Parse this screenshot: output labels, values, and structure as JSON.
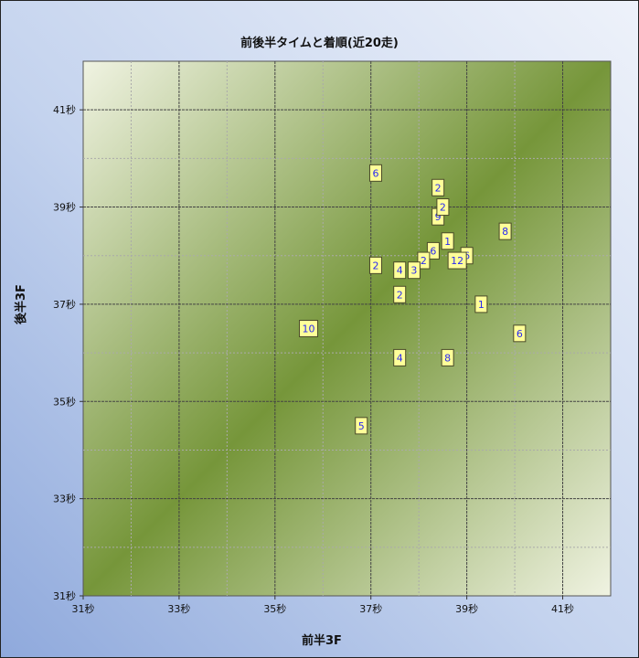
{
  "chart_data": {
    "type": "scatter",
    "title": "前後半タイムと着順(近20走)",
    "xlabel": "前半3F",
    "ylabel": "後半3F",
    "xlim": [
      31,
      42
    ],
    "ylim": [
      31,
      42
    ],
    "x_ticks": [
      "31秒",
      "33秒",
      "35秒",
      "37秒",
      "39秒",
      "41秒"
    ],
    "x_tick_values": [
      31,
      33,
      35,
      37,
      39,
      41
    ],
    "y_ticks": [
      "31秒",
      "33秒",
      "35秒",
      "37秒",
      "39秒",
      "41秒"
    ],
    "y_tick_values": [
      31,
      33,
      35,
      37,
      39,
      41
    ],
    "grid": true,
    "legend": "none",
    "marker_color": "#ffff99",
    "label_color": "#2a2af0",
    "points": [
      {
        "x": 37.1,
        "y": 39.7,
        "label": "6"
      },
      {
        "x": 38.4,
        "y": 39.4,
        "label": "2"
      },
      {
        "x": 38.4,
        "y": 38.8,
        "label": "9"
      },
      {
        "x": 38.5,
        "y": 39.0,
        "label": "2"
      },
      {
        "x": 39.8,
        "y": 38.5,
        "label": "8"
      },
      {
        "x": 38.6,
        "y": 38.3,
        "label": "1"
      },
      {
        "x": 38.3,
        "y": 38.1,
        "label": "6"
      },
      {
        "x": 39.0,
        "y": 38.0,
        "label": "6"
      },
      {
        "x": 38.1,
        "y": 37.9,
        "label": "2"
      },
      {
        "x": 38.8,
        "y": 37.9,
        "label": "12"
      },
      {
        "x": 37.1,
        "y": 37.8,
        "label": "2"
      },
      {
        "x": 37.6,
        "y": 37.7,
        "label": "4"
      },
      {
        "x": 37.9,
        "y": 37.7,
        "label": "3"
      },
      {
        "x": 37.6,
        "y": 37.2,
        "label": "2"
      },
      {
        "x": 39.3,
        "y": 37.0,
        "label": "1"
      },
      {
        "x": 35.7,
        "y": 36.5,
        "label": "10"
      },
      {
        "x": 40.1,
        "y": 36.4,
        "label": "6"
      },
      {
        "x": 37.6,
        "y": 35.9,
        "label": "4"
      },
      {
        "x": 38.6,
        "y": 35.9,
        "label": "8"
      },
      {
        "x": 36.8,
        "y": 34.5,
        "label": "5"
      }
    ]
  }
}
